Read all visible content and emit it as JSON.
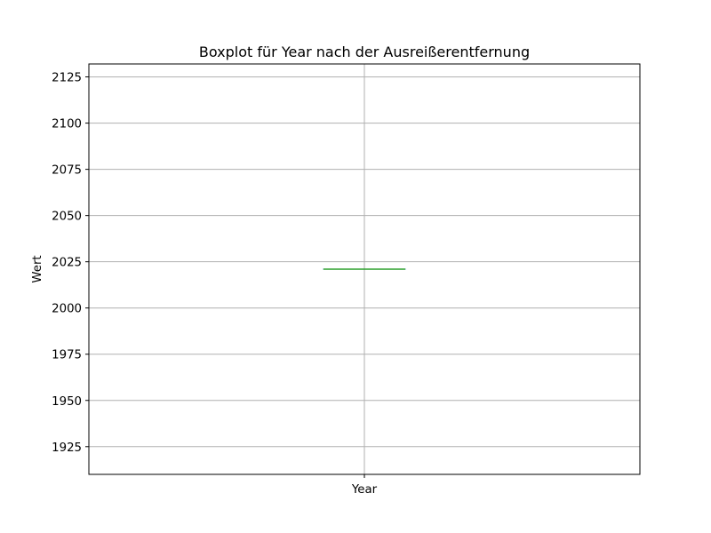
{
  "chart_data": {
    "type": "box",
    "title": "Boxplot für Year nach der Ausreißerentfernung",
    "xlabel": "",
    "ylabel": "Wert",
    "categories": [
      "Year"
    ],
    "series": [
      {
        "category": "Year",
        "whisker_low": 2021,
        "q1": 2021,
        "median": 2021,
        "q3": 2021,
        "whisker_high": 2021,
        "outliers": []
      }
    ],
    "ylim": [
      1910,
      2132
    ],
    "yticks": [
      1925,
      1950,
      1975,
      2000,
      2025,
      2050,
      2075,
      2100,
      2125
    ],
    "grid": true,
    "colors": {
      "median": "#2ca02c",
      "box": "#1f77b4",
      "grid": "#b0b0b0",
      "axes": "#000000"
    }
  }
}
